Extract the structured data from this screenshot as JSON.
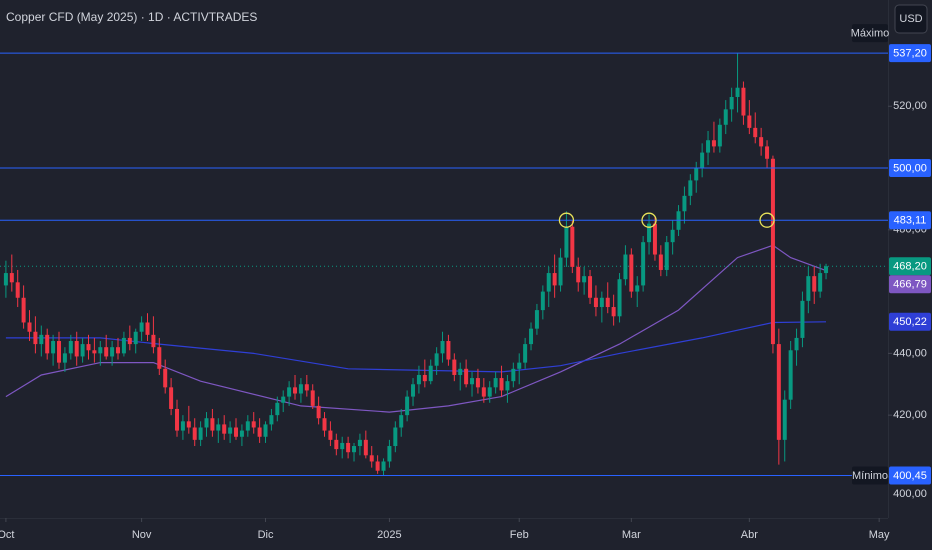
{
  "chart_data": {
    "type": "candlestick",
    "title": "Copper CFD (May 2025) · 1D · ACTIVTRADES",
    "currency": "USD",
    "up_color": "#089981",
    "down_color": "#f23645",
    "xlim": [
      -1,
      149.5
    ],
    "xticks": [
      {
        "value": 0,
        "label": "Oct"
      },
      {
        "value": 23,
        "label": "Nov"
      },
      {
        "value": 44,
        "label": "Dic"
      },
      {
        "value": 65,
        "label": "2025"
      },
      {
        "value": 87,
        "label": "Feb"
      },
      {
        "value": 106,
        "label": "Mar"
      },
      {
        "value": 126,
        "label": "Abr"
      },
      {
        "value": 148,
        "label": "May"
      }
    ],
    "ylim": [
      386.7,
      554.4
    ],
    "yticks": [
      {
        "value": 520,
        "label": "520,00"
      },
      {
        "value": 480,
        "label": "480,00"
      },
      {
        "value": 440,
        "label": "440,00"
      },
      {
        "value": 420,
        "label": "420,00"
      },
      {
        "value": 400,
        "label": "400,00"
      }
    ],
    "levels": [
      {
        "value": 537.2,
        "label": "537,20",
        "name": "Máximo"
      },
      {
        "value": 500,
        "label": "500,00"
      },
      {
        "value": 483.11,
        "label": "483,11"
      },
      {
        "value": 400.45,
        "label": "400,45",
        "name": "Mínimo"
      }
    ],
    "level_color": "#2962ff",
    "last_price": {
      "value": 468.2,
      "label": "468,20",
      "color": "#089981"
    },
    "moving_averages": [
      {
        "color": "#7e57c2",
        "x": [
          0,
          6,
          16,
          25,
          33,
          50,
          65,
          75,
          84,
          94,
          104,
          114,
          124,
          130,
          133,
          139
        ],
        "values": [
          426,
          433,
          437,
          437,
          431,
          423,
          421,
          423,
          426,
          434,
          443,
          454,
          471,
          475,
          471,
          466.79
        ],
        "value_label": "466,79"
      },
      {
        "color": "#2f3fd6",
        "x": [
          0,
          16,
          26,
          42,
          58,
          84,
          94,
          104,
          118,
          130,
          139
        ],
        "values": [
          445,
          445,
          443,
          440,
          435,
          434,
          436,
          440,
          445,
          450,
          450.22
        ],
        "value_label": "450,22"
      }
    ],
    "highlights": {
      "x": [
        95,
        109,
        129
      ],
      "value": 483.11,
      "color": "#e8e35a"
    },
    "ohlc": [
      [
        462,
        470,
        458,
        466
      ],
      [
        466,
        472,
        460,
        463
      ],
      [
        463,
        467,
        455,
        458
      ],
      [
        458,
        462,
        448,
        450
      ],
      [
        450,
        454,
        444,
        447
      ],
      [
        447,
        452,
        440,
        443
      ],
      [
        443,
        449,
        439,
        446
      ],
      [
        446,
        448,
        438,
        440
      ],
      [
        440,
        446,
        436,
        444
      ],
      [
        444,
        447,
        435,
        437
      ],
      [
        437,
        442,
        434,
        440
      ],
      [
        440,
        446,
        438,
        444
      ],
      [
        444,
        447,
        436,
        439
      ],
      [
        439,
        445,
        437,
        443
      ],
      [
        443,
        446,
        438,
        441
      ],
      [
        441,
        445,
        437,
        440
      ],
      [
        440,
        444,
        436,
        442
      ],
      [
        442,
        446,
        438,
        439
      ],
      [
        439,
        444,
        436,
        442
      ],
      [
        442,
        445,
        438,
        440
      ],
      [
        440,
        447,
        439,
        445
      ],
      [
        445,
        449,
        441,
        443
      ],
      [
        443,
        448,
        440,
        447
      ],
      [
        447,
        452,
        444,
        450
      ],
      [
        450,
        453,
        444,
        446
      ],
      [
        446,
        452,
        440,
        442
      ],
      [
        442,
        445,
        433,
        435
      ],
      [
        435,
        438,
        427,
        429
      ],
      [
        429,
        432,
        420,
        422
      ],
      [
        422,
        425,
        413,
        415
      ],
      [
        415,
        420,
        412,
        418
      ],
      [
        418,
        423,
        414,
        416
      ],
      [
        416,
        419,
        410,
        412
      ],
      [
        412,
        418,
        410,
        416
      ],
      [
        416,
        421,
        413,
        419
      ],
      [
        419,
        422,
        413,
        415
      ],
      [
        415,
        419,
        411,
        417
      ],
      [
        417,
        420,
        412,
        414
      ],
      [
        414,
        418,
        411,
        416
      ],
      [
        416,
        419,
        412,
        413
      ],
      [
        413,
        417,
        410,
        415
      ],
      [
        415,
        420,
        413,
        418
      ],
      [
        418,
        421,
        414,
        416
      ],
      [
        416,
        419,
        411,
        413
      ],
      [
        413,
        418,
        411,
        417
      ],
      [
        417,
        422,
        415,
        420
      ],
      [
        420,
        426,
        418,
        424
      ],
      [
        424,
        428,
        421,
        426
      ],
      [
        426,
        431,
        423,
        429
      ],
      [
        429,
        433,
        425,
        427
      ],
      [
        427,
        432,
        424,
        430
      ],
      [
        430,
        433,
        426,
        428
      ],
      [
        428,
        430,
        422,
        423
      ],
      [
        423,
        426,
        417,
        419
      ],
      [
        419,
        421,
        413,
        415
      ],
      [
        415,
        418,
        410,
        412
      ],
      [
        412,
        414,
        407,
        409
      ],
      [
        409,
        413,
        406,
        411
      ],
      [
        411,
        413,
        406,
        408
      ],
      [
        408,
        411,
        405,
        410
      ],
      [
        410,
        414,
        407,
        412
      ],
      [
        412,
        415,
        406,
        407
      ],
      [
        407,
        410,
        403,
        405
      ],
      [
        405,
        407,
        401,
        402
      ],
      [
        402,
        406,
        400.45,
        405
      ],
      [
        405,
        412,
        403,
        410
      ],
      [
        410,
        418,
        408,
        416
      ],
      [
        416,
        422,
        413,
        420
      ],
      [
        420,
        428,
        418,
        426
      ],
      [
        426,
        432,
        423,
        430
      ],
      [
        430,
        436,
        427,
        433
      ],
      [
        433,
        438,
        429,
        431
      ],
      [
        431,
        438,
        430,
        436
      ],
      [
        436,
        442,
        433,
        440
      ],
      [
        440,
        447,
        437,
        444
      ],
      [
        444,
        446,
        436,
        438
      ],
      [
        438,
        440,
        431,
        433
      ],
      [
        433,
        437,
        428,
        435
      ],
      [
        435,
        438,
        429,
        430
      ],
      [
        430,
        434,
        426,
        432
      ],
      [
        432,
        435,
        427,
        429
      ],
      [
        429,
        432,
        424,
        426
      ],
      [
        426,
        431,
        424,
        429
      ],
      [
        429,
        434,
        427,
        432
      ],
      [
        432,
        436,
        426,
        428
      ],
      [
        428,
        433,
        424,
        431
      ],
      [
        431,
        437,
        429,
        435
      ],
      [
        435,
        440,
        430,
        437
      ],
      [
        437,
        445,
        435,
        443
      ],
      [
        443,
        450,
        441,
        448
      ],
      [
        448,
        456,
        446,
        454
      ],
      [
        454,
        462,
        451,
        460
      ],
      [
        460,
        468,
        455,
        466
      ],
      [
        466,
        472,
        458,
        462
      ],
      [
        462,
        474,
        460,
        471
      ],
      [
        471,
        486,
        468,
        481
      ],
      [
        481,
        483,
        466,
        468
      ],
      [
        468,
        471,
        460,
        463
      ],
      [
        463,
        468,
        459,
        465
      ],
      [
        465,
        467,
        456,
        458
      ],
      [
        458,
        462,
        452,
        455
      ],
      [
        455,
        460,
        450,
        458
      ],
      [
        458,
        463,
        453,
        455
      ],
      [
        455,
        459,
        449,
        452
      ],
      [
        452,
        466,
        450,
        464
      ],
      [
        464,
        475,
        462,
        472
      ],
      [
        472,
        474,
        458,
        460
      ],
      [
        460,
        465,
        455,
        462
      ],
      [
        462,
        478,
        460,
        476
      ],
      [
        476,
        485,
        472,
        482
      ],
      [
        482,
        484,
        470,
        472
      ],
      [
        472,
        475,
        465,
        467
      ],
      [
        467,
        478,
        465,
        476
      ],
      [
        476,
        483,
        472,
        480
      ],
      [
        480,
        488,
        478,
        486
      ],
      [
        486,
        494,
        482,
        491
      ],
      [
        491,
        498,
        488,
        496
      ],
      [
        496,
        502,
        492,
        500
      ],
      [
        500,
        508,
        497,
        505
      ],
      [
        505,
        512,
        501,
        509
      ],
      [
        509,
        515,
        505,
        507
      ],
      [
        507,
        516,
        505,
        514
      ],
      [
        514,
        522,
        511,
        519
      ],
      [
        519,
        526,
        515,
        523
      ],
      [
        523,
        537.2,
        518,
        526
      ],
      [
        526,
        528,
        514,
        517
      ],
      [
        517,
        522,
        511,
        513
      ],
      [
        513,
        518,
        508,
        510
      ],
      [
        510,
        513,
        504,
        507
      ],
      [
        507,
        509,
        500,
        503
      ],
      [
        503,
        504,
        440,
        443
      ],
      [
        443,
        448,
        404,
        412
      ],
      [
        412,
        428,
        405,
        425
      ],
      [
        425,
        444,
        422,
        441
      ],
      [
        441,
        448,
        436,
        445
      ],
      [
        445,
        460,
        442,
        457
      ],
      [
        457,
        468,
        453,
        465
      ],
      [
        465,
        468,
        456,
        460
      ],
      [
        460,
        469,
        458,
        466
      ],
      [
        466,
        469,
        464,
        468.2
      ]
    ]
  }
}
